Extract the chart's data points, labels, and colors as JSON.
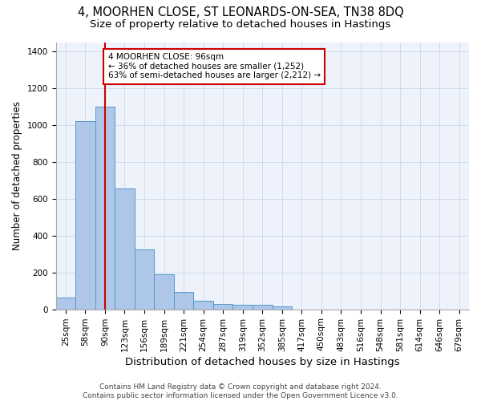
{
  "title1": "4, MOORHEN CLOSE, ST LEONARDS-ON-SEA, TN38 8DQ",
  "title2": "Size of property relative to detached houses in Hastings",
  "xlabel": "Distribution of detached houses by size in Hastings",
  "ylabel": "Number of detached properties",
  "categories": [
    "25sqm",
    "58sqm",
    "90sqm",
    "123sqm",
    "156sqm",
    "189sqm",
    "221sqm",
    "254sqm",
    "287sqm",
    "319sqm",
    "352sqm",
    "385sqm",
    "417sqm",
    "450sqm",
    "483sqm",
    "516sqm",
    "548sqm",
    "581sqm",
    "614sqm",
    "646sqm",
    "679sqm"
  ],
  "values": [
    65,
    1020,
    1100,
    655,
    325,
    190,
    95,
    48,
    30,
    25,
    25,
    15,
    0,
    0,
    0,
    0,
    0,
    0,
    0,
    0,
    0
  ],
  "bar_color": "#aec6e8",
  "bar_edge_color": "#5599cc",
  "vline_x": 2,
  "vline_color": "#cc0000",
  "annotation_line1": "4 MOORHEN CLOSE: 96sqm",
  "annotation_line2": "← 36% of detached houses are smaller (1,252)",
  "annotation_line3": "63% of semi-detached houses are larger (2,212) →",
  "annotation_box_color": "#ffffff",
  "annotation_box_edge": "#cc0000",
  "ylim": [
    0,
    1450
  ],
  "yticks": [
    0,
    200,
    400,
    600,
    800,
    1000,
    1200,
    1400
  ],
  "footer1": "Contains HM Land Registry data © Crown copyright and database right 2024.",
  "footer2": "Contains public sector information licensed under the Open Government Licence v3.0.",
  "bg_color": "#eef2fb",
  "title1_fontsize": 10.5,
  "title2_fontsize": 9.5,
  "xlabel_fontsize": 9.5,
  "ylabel_fontsize": 8.5,
  "tick_fontsize": 7.5,
  "annot_fontsize": 7.5,
  "footer_fontsize": 6.5
}
